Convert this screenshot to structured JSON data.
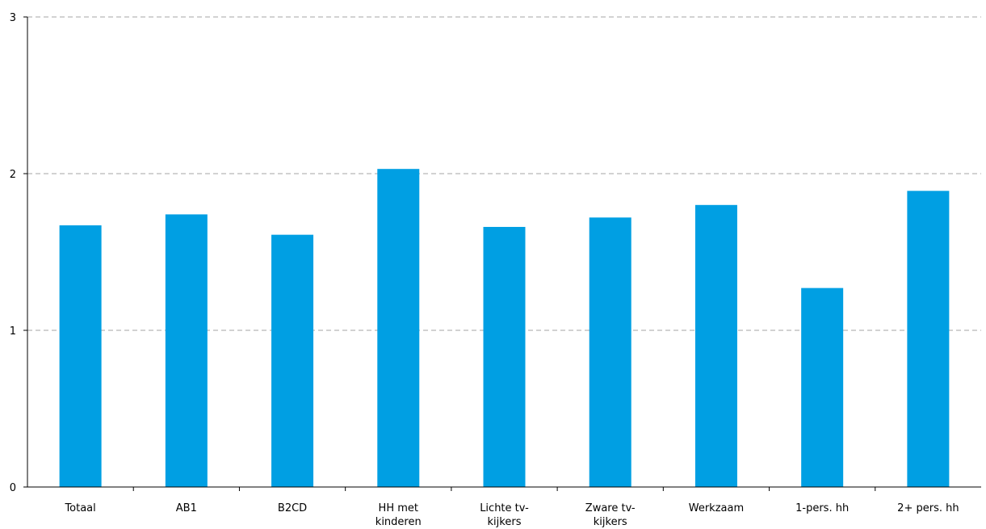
{
  "chart_data": {
    "type": "bar",
    "title": "",
    "xlabel": "",
    "ylabel": "",
    "ylim": [
      0,
      3
    ],
    "yticks": [
      "0",
      "1",
      "2",
      "3"
    ],
    "grid": true,
    "legend": "none",
    "bar_color": "#009fe3",
    "categories": [
      [
        "Totaal"
      ],
      [
        "AB1"
      ],
      [
        "B2CD"
      ],
      [
        "HH met",
        "kinderen"
      ],
      [
        "Lichte tv-",
        "kijkers"
      ],
      [
        "Zware tv-",
        "kijkers"
      ],
      [
        "Werkzaam"
      ],
      [
        "1-pers. hh"
      ],
      [
        "2+ pers. hh"
      ]
    ],
    "values": [
      1.67,
      1.74,
      1.61,
      2.03,
      1.66,
      1.72,
      1.8,
      1.27,
      1.89
    ]
  }
}
